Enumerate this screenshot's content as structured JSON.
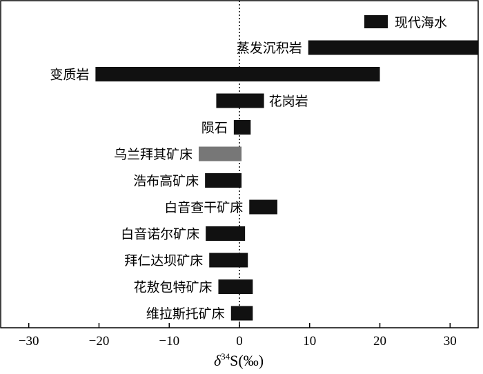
{
  "chart_data": {
    "type": "bar",
    "subtype": "range-bar",
    "orientation": "horizontal",
    "xlabel": "δ34S(‰)",
    "xlabel_parts": {
      "italic": "δ",
      "sup": "34",
      "rest": "S(‰)"
    },
    "xlim": [
      -34,
      34
    ],
    "xticks": [
      -30,
      -20,
      -10,
      0,
      10,
      20,
      30
    ],
    "reference_line": {
      "x": 0,
      "style": "dotted"
    },
    "legend": {
      "label": "现代海水",
      "placement": "top-right",
      "color": "#111111"
    },
    "categories": [
      {
        "label": "蒸发沉积岩",
        "min": 9.8,
        "max": 34,
        "label_side": "left",
        "color": "#111111"
      },
      {
        "label": "变质岩",
        "min": -20.5,
        "max": 20,
        "label_side": "left",
        "color": "#111111"
      },
      {
        "label": "花岗岩",
        "min": -3.3,
        "max": 3.5,
        "label_side": "right",
        "color": "#111111"
      },
      {
        "label": "陨石",
        "min": -0.8,
        "max": 1.6,
        "label_side": "left",
        "color": "#111111"
      },
      {
        "label": "乌兰拜其矿床",
        "min": -5.8,
        "max": 0.3,
        "label_side": "left",
        "color": "#777777"
      },
      {
        "label": "浩布高矿床",
        "min": -4.9,
        "max": 0.3,
        "label_side": "left",
        "color": "#111111"
      },
      {
        "label": "白音查干矿床",
        "min": 1.4,
        "max": 5.4,
        "label_side": "left",
        "color": "#111111"
      },
      {
        "label": "白音诺尔矿床",
        "min": -4.8,
        "max": 0.8,
        "label_side": "left",
        "color": "#111111"
      },
      {
        "label": "拜仁达坝矿床",
        "min": -4.3,
        "max": 1.2,
        "label_side": "left",
        "color": "#111111"
      },
      {
        "label": "花敖包特矿床",
        "min": -3.0,
        "max": 1.9,
        "label_side": "left",
        "color": "#111111"
      },
      {
        "label": "维拉斯托矿床",
        "min": -1.2,
        "max": 1.9,
        "label_side": "left",
        "color": "#111111"
      }
    ]
  }
}
